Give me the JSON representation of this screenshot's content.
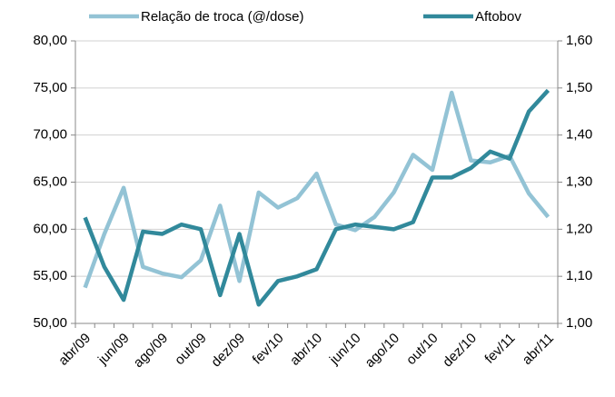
{
  "chart_data": {
    "type": "line",
    "categories": [
      "abr/09",
      null,
      "jun/09",
      null,
      "ago/09",
      null,
      "out/09",
      null,
      "dez/09",
      null,
      "fev/10",
      null,
      "abr/10",
      null,
      "jun/10",
      null,
      "ago/10",
      null,
      "out/10",
      null,
      "dez/10",
      null,
      "fev/11",
      null,
      "abr/11"
    ],
    "series": [
      {
        "name": "Relação de troca (@/dose)",
        "color": "#93c3d5",
        "values": [
          53.8,
          59.5,
          64.4,
          56.0,
          55.3,
          54.9,
          56.7,
          62.5,
          54.5,
          63.9,
          62.3,
          63.3,
          65.9,
          60.5,
          59.9,
          61.3,
          63.9,
          67.9,
          66.3,
          74.5,
          67.3,
          67.1,
          67.8,
          63.8,
          61.3
        ]
      },
      {
        "name": "Aftobov",
        "color": "#31899b",
        "axis": "y2",
        "values": [
          1.225,
          1.12,
          1.05,
          1.195,
          1.19,
          1.21,
          1.2,
          1.06,
          1.19,
          1.04,
          1.09,
          1.1,
          1.115,
          1.2,
          1.21,
          1.205,
          1.2,
          1.215,
          1.31,
          1.31,
          1.33,
          1.365,
          1.35,
          1.45,
          1.495
        ]
      }
    ],
    "ylim": [
      50,
      80
    ],
    "yticks": [
      {
        "value": 50,
        "label": "50,00"
      },
      {
        "value": 55,
        "label": "55,00"
      },
      {
        "value": 60,
        "label": "60,00"
      },
      {
        "value": 65,
        "label": "65,00"
      },
      {
        "value": 70,
        "label": "70,00"
      },
      {
        "value": 75,
        "label": "75,00"
      },
      {
        "value": 80,
        "label": "80,00"
      }
    ],
    "y2lim": [
      1.0,
      1.6
    ],
    "y2ticks": [
      {
        "value": 1.0,
        "label": "1,00"
      },
      {
        "value": 1.1,
        "label": "1,10"
      },
      {
        "value": 1.2,
        "label": "1,20"
      },
      {
        "value": 1.3,
        "label": "1,30"
      },
      {
        "value": 1.4,
        "label": "1,40"
      },
      {
        "value": 1.5,
        "label": "1,50"
      },
      {
        "value": 1.6,
        "label": "1,60"
      }
    ],
    "grid": true,
    "legend": "top"
  }
}
